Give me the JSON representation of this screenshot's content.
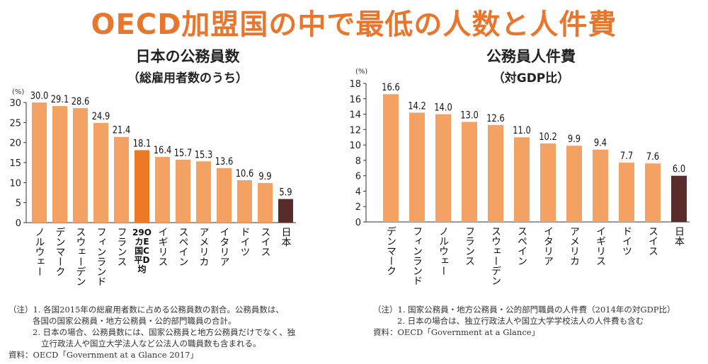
{
  "title": "OECD加盟国の中で最低の人数と人件費",
  "colors": {
    "accent": "#e8762d",
    "bar": "#f4a263",
    "highlight": "#ec7a24",
    "japan": "#5a2b2b",
    "axis": "#333333"
  },
  "charts": [
    {
      "title_line1": "日本の公務員数",
      "title_line2": "（総雇用者数のうち）",
      "unit": "(%)",
      "notes": [
        "（注）1. 各国2015年の総雇用者数に占める公務員数の割合。公務員数は、",
        "各国の国家公務員・地方公務員・公的部門職員の合計。",
        "2. 日本の場合、公務員数には、国家公務員と地方公務員だけでなく、独",
        "立行政法人や国立大学法人など公法人の職員数も含まれる。",
        "資料：OECD「Government at a Glance 2017」"
      ]
    },
    {
      "title_line1": "公務員人件費",
      "title_line2": "（対GDP比）",
      "unit": "(%)",
      "notes": [
        "（注）1. 国家公務員・地方公務員・公的部門職員の人件費（2014年の対GDP比）",
        "2. 日本の場合は、独立行政法人や国立大学学校法人の人件費も含む",
        "資料：OECD「Government at a Glance」"
      ]
    }
  ],
  "chart_data": [
    {
      "type": "bar",
      "title": "日本の公務員数（総雇用者数のうち）",
      "ylabel": "(%)",
      "ylim": [
        0,
        30
      ],
      "yticks": [
        0,
        5,
        10,
        15,
        20,
        25,
        30
      ],
      "categories": [
        "ノルウェー",
        "デンマーク",
        "スウェーデン",
        "フィンランド",
        "フランス",
        "29カ国OECD平均",
        "イギリス",
        "スペイン",
        "アメリカ",
        "イタリア",
        "ドイツ",
        "スイス",
        "日本"
      ],
      "category_labels": [
        "ノルウェー",
        "デンマーク",
        "スウェーデン",
        "フィンランド",
        "フランス",
        "29O\nカE\n国C\n平D\n均",
        "イギリス",
        "スペイン",
        "アメリカ",
        "イタリア",
        "ドイツ",
        "スイス",
        "日本"
      ],
      "values": [
        30.0,
        29.1,
        28.6,
        24.9,
        21.4,
        18.1,
        16.4,
        15.7,
        15.3,
        13.6,
        10.6,
        9.9,
        5.9
      ],
      "value_labels": [
        "30.0",
        "29.1",
        "28.6",
        "24.9",
        "21.4",
        "18.1",
        "16.4",
        "15.7",
        "15.3",
        "13.6",
        "10.6",
        "9.9",
        "5.9"
      ],
      "highlight": {
        "29カ国OECD平均": "highlight",
        "日本": "japan"
      }
    },
    {
      "type": "bar",
      "title": "公務員人件費（対GDP比）",
      "ylabel": "(%)",
      "ylim": [
        0,
        18
      ],
      "yticks": [
        0,
        2,
        4,
        6,
        8,
        10,
        12,
        14,
        16,
        18
      ],
      "categories": [
        "デンマーク",
        "フィンランド",
        "ノルウェー",
        "フランス",
        "スウェーデン",
        "スペイン",
        "イタリア",
        "アメリカ",
        "イギリス",
        "ドイツ",
        "スイス",
        "日本"
      ],
      "category_labels": [
        "デンマーク",
        "フィンランド",
        "ノルウェー",
        "フランス",
        "スウェーデン",
        "スペイン",
        "イタリア",
        "アメリカ",
        "イギリス",
        "ドイツ",
        "スイス",
        "日本"
      ],
      "values": [
        16.6,
        14.2,
        14.0,
        13.0,
        12.6,
        11.0,
        10.2,
        9.9,
        9.4,
        7.7,
        7.6,
        6.0
      ],
      "value_labels": [
        "16.6",
        "14.2",
        "14.0",
        "13.0",
        "12.6",
        "11.0",
        "10.2",
        "9.9",
        "9.4",
        "7.7",
        "7.6",
        "6.0"
      ],
      "highlight": {
        "日本": "japan"
      }
    }
  ]
}
